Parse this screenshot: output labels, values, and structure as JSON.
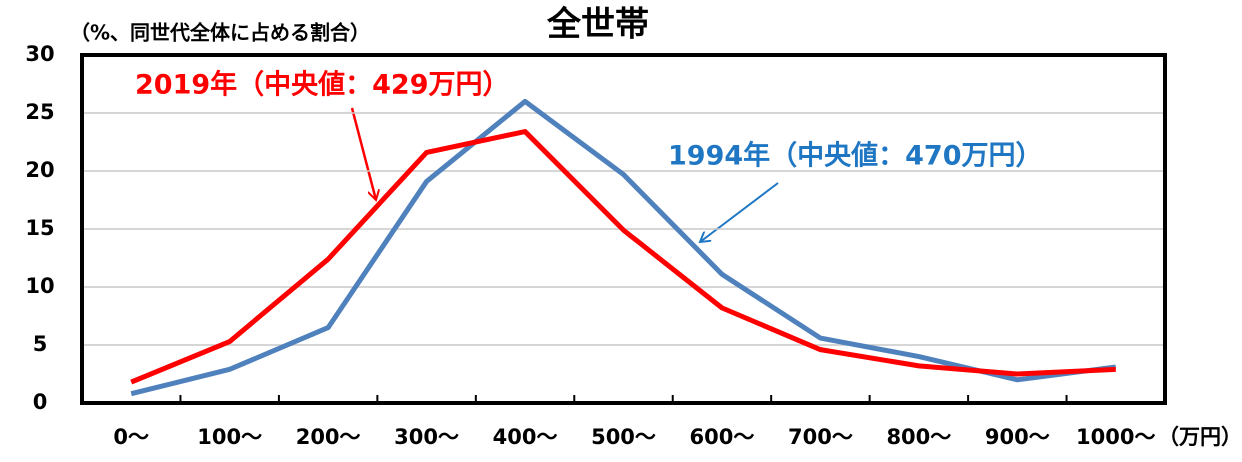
{
  "chart_data": {
    "type": "line",
    "title": "全世帯",
    "y_label": "（%、同世代全体に占める割合）",
    "x_unit": "（万円）",
    "categories": [
      "0〜",
      "100〜",
      "200〜",
      "300〜",
      "400〜",
      "500〜",
      "600〜",
      "700〜",
      "800〜",
      "900〜",
      "1000〜"
    ],
    "series": [
      {
        "name": "2019年（中央値：429万円）",
        "color": "#ff0000",
        "values": [
          1.8,
          5.3,
          12.4,
          21.6,
          23.4,
          14.9,
          8.2,
          4.6,
          3.2,
          2.5,
          2.9
        ]
      },
      {
        "name": "1994年（中央値：470万円）",
        "color": "#4f81bd",
        "values": [
          0.8,
          2.9,
          6.5,
          19.1,
          26.0,
          19.7,
          11.1,
          5.6,
          4.0,
          2.0,
          3.1
        ]
      }
    ],
    "ylim": [
      0,
      30
    ],
    "yticks": [
      0,
      5,
      10,
      15,
      20,
      25,
      30
    ],
    "grid": true
  }
}
